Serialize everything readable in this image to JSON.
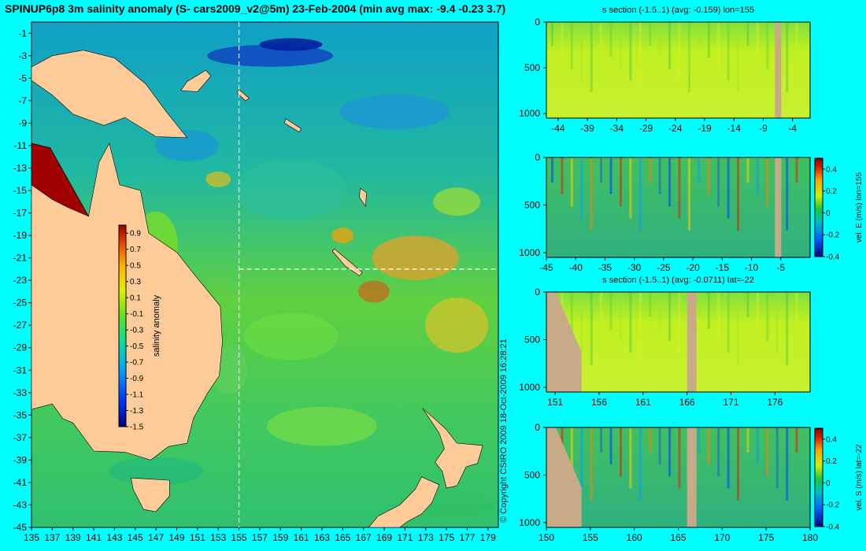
{
  "chart_data": [
    {
      "type": "heatmap",
      "title": "SPINUP6p8 3m salinity anomaly (S- cars2009_v2@5m) 23-Feb-2004 (min avg max: -9.4 -0.23 3.7)",
      "xlim": [
        135,
        180
      ],
      "ylim": [
        -45,
        0
      ],
      "x_ticks": [
        "135",
        "137",
        "139",
        "141",
        "143",
        "145",
        "147",
        "149",
        "151",
        "153",
        "155",
        "157",
        "159",
        "161",
        "163",
        "165",
        "167",
        "169",
        "171",
        "173",
        "175",
        "177",
        "179"
      ],
      "y_ticks": [
        "-1",
        "-3",
        "-5",
        "-7",
        "-9",
        "-11",
        "-13",
        "-15",
        "-17",
        "-19",
        "-21",
        "-23",
        "-25",
        "-27",
        "-29",
        "-31",
        "-33",
        "-35",
        "-37",
        "-39",
        "-41",
        "-43",
        "-45"
      ],
      "section_lon": 155,
      "section_lat": -22,
      "colorbar": {
        "label": "salinity anomaly",
        "range": [
          -1.5,
          1.0
        ],
        "ticks": [
          "0.9",
          "0.7",
          "0.5",
          "0.3",
          "0.1",
          "-0.1",
          "-0.3",
          "-0.5",
          "-0.7",
          "-0.9",
          "-1.1",
          "-1.3",
          "-1.5"
        ]
      },
      "copyright": "© Copyright CSIRO 2009   18-Oct-2009 16:28:21",
      "colors": {
        "land": "#ffcc99",
        "background": "#00ffff"
      }
    },
    {
      "type": "heatmap",
      "title": "s section (-1.5..1) (avg: -0.159) lon=155",
      "xlim": [
        -46,
        -1
      ],
      "ylim": [
        1050,
        0
      ],
      "x_ticks": [
        "-44",
        "-39",
        "-34",
        "-29",
        "-24",
        "-19",
        "-14",
        "-9",
        "-4"
      ],
      "y_ticks": [
        "0",
        "500",
        "1000"
      ]
    },
    {
      "type": "heatmap",
      "title": "",
      "xlim": [
        -45,
        0
      ],
      "ylim": [
        1050,
        0
      ],
      "x_ticks": [
        "-45",
        "-40",
        "-35",
        "-30",
        "-25",
        "-20",
        "-15",
        "-10",
        "-5"
      ],
      "y_ticks": [
        "0",
        "500",
        "1000"
      ],
      "colorbar": {
        "label": "vel. E (m/s) lon=155",
        "range": [
          -0.4,
          0.5
        ],
        "ticks": [
          "0.4",
          "0.2",
          "0",
          "-0.2",
          "-0.4"
        ]
      }
    },
    {
      "type": "heatmap",
      "title": "s section (-1.5..1) (avg: -0.0711) lat=-22",
      "xlim": [
        150,
        180
      ],
      "ylim": [
        1050,
        0
      ],
      "x_ticks": [
        "151",
        "156",
        "161",
        "166",
        "171",
        "176"
      ],
      "y_ticks": [
        "0",
        "500",
        "1000"
      ]
    },
    {
      "type": "heatmap",
      "title": "",
      "xlim": [
        150,
        180
      ],
      "ylim": [
        1050,
        0
      ],
      "x_ticks": [
        "150",
        "155",
        "160",
        "165",
        "170",
        "175",
        "180"
      ],
      "y_ticks": [
        "0",
        "500",
        "1000"
      ],
      "colorbar": {
        "label": "vel. S (m/s) lat=-22",
        "range": [
          -0.4,
          0.5
        ],
        "ticks": [
          "0.4",
          "0.2",
          "0",
          "-0.2",
          "-0.4"
        ]
      }
    }
  ]
}
